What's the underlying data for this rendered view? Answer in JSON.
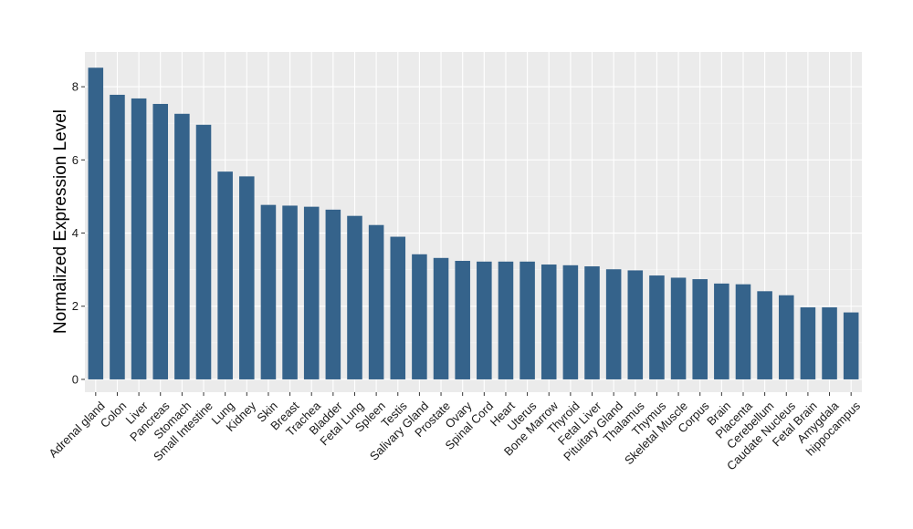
{
  "chart_data": {
    "type": "bar",
    "ylabel": "Normalized Expression Level",
    "xlabel": "",
    "ylim": [
      -0.35,
      8.95
    ],
    "yticks": [
      0,
      2,
      4,
      6,
      8
    ],
    "grid": true,
    "bar_color": "#35638b",
    "panel_color": "#ebebeb",
    "categories": [
      "Adrenal gland",
      "Colon",
      "Liver",
      "Pancreas",
      "Stomach",
      "Small Intestine",
      "Lung",
      "Kidney",
      "Skin",
      "Breast",
      "Trachea",
      "Bladder",
      "Fetal Lung",
      "Spleen",
      "Testis",
      "Salivary Gland",
      "Prostate",
      "Ovary",
      "Spinal Cord",
      "Heart",
      "Uterus",
      "Bone Marrow",
      "Thyroid",
      "Fetal Liver",
      "Pituitary Gland",
      "Thalamus",
      "Thymus",
      "Skeletal Muscle",
      "Corpus",
      "Brain",
      "Placenta",
      "Cerebellum",
      "Caudate Nucleus",
      "Fetal Brain",
      "Amygdala",
      "hippocampus"
    ],
    "values": [
      8.52,
      7.78,
      7.68,
      7.53,
      7.26,
      6.96,
      5.68,
      5.55,
      4.77,
      4.75,
      4.72,
      4.64,
      4.47,
      4.22,
      3.9,
      3.42,
      3.32,
      3.24,
      3.22,
      3.22,
      3.22,
      3.14,
      3.12,
      3.09,
      3.01,
      2.98,
      2.84,
      2.78,
      2.74,
      2.62,
      2.6,
      2.41,
      2.3,
      1.97,
      1.97,
      1.83
    ]
  }
}
